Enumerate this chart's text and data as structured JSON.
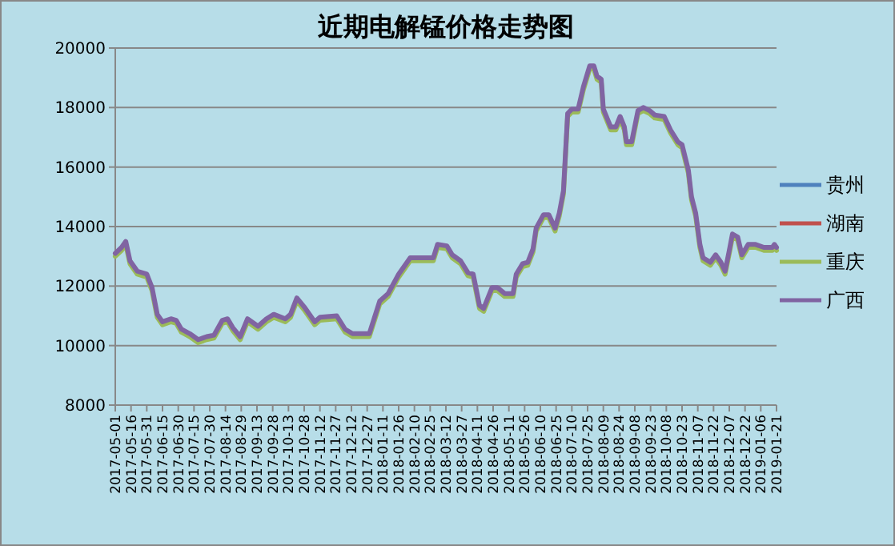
{
  "chart_data": {
    "type": "line",
    "title": "近期电解锰价格走势图",
    "x": [
      "2017-05-01",
      "2017-05-07",
      "2017-05-11",
      "2017-05-15",
      "2017-05-22",
      "2017-05-31",
      "2017-06-05",
      "2017-06-10",
      "2017-06-15",
      "2017-06-23",
      "2017-06-28",
      "2017-07-03",
      "2017-07-11",
      "2017-07-19",
      "2017-07-27",
      "2017-08-03",
      "2017-08-11",
      "2017-08-16",
      "2017-08-21",
      "2017-08-28",
      "2017-09-04",
      "2017-09-14",
      "2017-09-22",
      "2017-09-29",
      "2017-10-10",
      "2017-10-15",
      "2017-10-21",
      "2017-10-28",
      "2017-11-07",
      "2017-11-12",
      "2017-11-28",
      "2017-12-06",
      "2017-12-13",
      "2017-12-29",
      "2018-01-03",
      "2018-01-08",
      "2018-01-16",
      "2018-01-26",
      "2018-02-06",
      "2018-02-28",
      "2018-03-04",
      "2018-03-13",
      "2018-03-18",
      "2018-03-26",
      "2018-04-02",
      "2018-04-07",
      "2018-04-13",
      "2018-04-17",
      "2018-04-25",
      "2018-04-30",
      "2018-05-07",
      "2018-05-15",
      "2018-05-18",
      "2018-05-24",
      "2018-05-29",
      "2018-06-03",
      "2018-06-06",
      "2018-06-13",
      "2018-06-18",
      "2018-06-24",
      "2018-06-28",
      "2018-07-02",
      "2018-07-06",
      "2018-07-10",
      "2018-07-16",
      "2018-07-21",
      "2018-07-27",
      "2018-07-31",
      "2018-08-03",
      "2018-08-07",
      "2018-08-09",
      "2018-08-16",
      "2018-08-21",
      "2018-08-25",
      "2018-08-29",
      "2018-08-31",
      "2018-09-05",
      "2018-09-11",
      "2018-09-16",
      "2018-09-22",
      "2018-09-27",
      "2018-10-06",
      "2018-10-12",
      "2018-10-19",
      "2018-10-23",
      "2018-10-29",
      "2018-11-01",
      "2018-11-05",
      "2018-11-09",
      "2018-11-12",
      "2018-11-19",
      "2018-11-24",
      "2018-11-29",
      "2018-12-03",
      "2018-12-07",
      "2018-12-10",
      "2018-12-15",
      "2018-12-19",
      "2018-12-25",
      "2019-01-01",
      "2019-01-09",
      "2019-01-17",
      "2019-01-19",
      "2019-01-21"
    ],
    "series": [
      {
        "name": "贵州",
        "color": "#4f81bd",
        "values": [
          null,
          null,
          null,
          null,
          null,
          null,
          null,
          null,
          null,
          null,
          null,
          null,
          null,
          null,
          null,
          null,
          null,
          null,
          null,
          null,
          null,
          null,
          null,
          null,
          null,
          null,
          null,
          null,
          null,
          null,
          null,
          null,
          null,
          null,
          null,
          null,
          null,
          null,
          null,
          null,
          null,
          null,
          null,
          null,
          null,
          null,
          null,
          null,
          null,
          null,
          null,
          null,
          null,
          null,
          null,
          null,
          null,
          null,
          null,
          null,
          null,
          null,
          null,
          null,
          null,
          null,
          null,
          null,
          null,
          null,
          null,
          null,
          null,
          null,
          null,
          null,
          null,
          null,
          null,
          null,
          null,
          null,
          null,
          null,
          null,
          null,
          null,
          null,
          null,
          null,
          null,
          null,
          null,
          null,
          null,
          null,
          null,
          null,
          null,
          null,
          null,
          null,
          null,
          null
        ]
      },
      {
        "name": "湖南",
        "color": "#c0504d",
        "values": [
          null,
          null,
          null,
          null,
          null,
          null,
          null,
          null,
          null,
          null,
          null,
          null,
          null,
          null,
          null,
          null,
          null,
          null,
          null,
          null,
          null,
          null,
          null,
          null,
          null,
          null,
          null,
          null,
          null,
          null,
          null,
          null,
          null,
          null,
          null,
          null,
          null,
          null,
          null,
          null,
          null,
          null,
          null,
          null,
          null,
          null,
          null,
          null,
          null,
          null,
          null,
          null,
          null,
          null,
          null,
          null,
          null,
          null,
          null,
          null,
          null,
          null,
          null,
          null,
          null,
          null,
          null,
          null,
          null,
          null,
          null,
          null,
          null,
          null,
          null,
          null,
          null,
          null,
          null,
          null,
          null,
          null,
          null,
          null,
          null,
          null,
          null,
          null,
          null,
          null,
          null,
          null,
          null,
          null,
          null,
          null,
          null,
          null,
          null,
          null,
          null,
          null,
          null,
          null
        ]
      },
      {
        "name": "重庆",
        "color": "#9bbb59",
        "values": [
          13000,
          13200,
          13400,
          12750,
          12400,
          12300,
          11850,
          10950,
          10700,
          10800,
          10750,
          10450,
          10300,
          10100,
          10200,
          10250,
          10750,
          10800,
          10500,
          10200,
          10800,
          10550,
          10800,
          10950,
          10800,
          10950,
          11500,
          11200,
          10700,
          10850,
          10900,
          10450,
          10300,
          10300,
          10850,
          11400,
          11650,
          12300,
          12850,
          12850,
          13300,
          13250,
          12950,
          12750,
          12350,
          12300,
          11250,
          11150,
          11850,
          11850,
          11650,
          11650,
          12300,
          12650,
          12700,
          13150,
          13850,
          14300,
          14300,
          13850,
          14350,
          15100,
          17700,
          17850,
          17850,
          18600,
          19300,
          19300,
          18950,
          18850,
          17850,
          17250,
          17250,
          17600,
          17250,
          16750,
          16750,
          17800,
          17900,
          17800,
          17650,
          17600,
          17150,
          16750,
          16650,
          15800,
          14900,
          14350,
          13300,
          12850,
          12700,
          12950,
          12700,
          12400,
          13100,
          13650,
          13550,
          12950,
          13300,
          13300,
          13200,
          13200,
          13300,
          13200
        ]
      },
      {
        "name": "广西",
        "color": "#8064a2",
        "values": [
          13100,
          13300,
          13500,
          12850,
          12500,
          12400,
          11950,
          11050,
          10800,
          10900,
          10850,
          10550,
          10400,
          10200,
          10300,
          10350,
          10850,
          10900,
          10600,
          10300,
          10900,
          10650,
          10900,
          11050,
          10900,
          11050,
          11600,
          11300,
          10800,
          10950,
          11000,
          10550,
          10400,
          10400,
          10950,
          11500,
          11750,
          12400,
          12950,
          12950,
          13400,
          13350,
          13050,
          12850,
          12450,
          12400,
          11350,
          11250,
          11950,
          11950,
          11750,
          11750,
          12400,
          12750,
          12800,
          13250,
          13950,
          14400,
          14400,
          13950,
          14450,
          15200,
          17800,
          17950,
          17950,
          18700,
          19400,
          19400,
          19050,
          18950,
          17950,
          17350,
          17350,
          17700,
          17350,
          16850,
          16850,
          17900,
          18000,
          17900,
          17750,
          17700,
          17250,
          16850,
          16750,
          15900,
          15000,
          14450,
          13400,
          12950,
          12800,
          13050,
          12800,
          12500,
          13200,
          13750,
          13650,
          13050,
          13400,
          13400,
          13300,
          13300,
          13400,
          13300
        ]
      }
    ],
    "xlim": [
      "2017-05-01",
      "2019-01-21"
    ],
    "xticks": [
      "2017-05-01",
      "2017-05-16",
      "2017-05-31",
      "2017-06-15",
      "2017-06-30",
      "2017-07-15",
      "2017-07-30",
      "2017-08-14",
      "2017-08-29",
      "2017-09-13",
      "2017-09-28",
      "2017-10-13",
      "2017-10-28",
      "2017-11-12",
      "2017-11-27",
      "2017-12-12",
      "2017-12-27",
      "2018-01-11",
      "2018-01-26",
      "2018-02-10",
      "2018-02-25",
      "2018-03-12",
      "2018-03-27",
      "2018-04-11",
      "2018-04-26",
      "2018-05-11",
      "2018-05-26",
      "2018-06-10",
      "2018-06-25",
      "2018-07-10",
      "2018-07-25",
      "2018-08-09",
      "2018-08-24",
      "2018-09-08",
      "2018-09-23",
      "2018-10-08",
      "2018-10-23",
      "2018-11-07",
      "2018-11-22",
      "2018-12-07",
      "2018-12-22",
      "2019-01-06",
      "2019-01-21"
    ],
    "ylim": [
      8000,
      20000
    ],
    "yticks": [
      8000,
      10000,
      12000,
      14000,
      16000,
      18000,
      20000
    ],
    "grid": "y",
    "legend": "right"
  }
}
